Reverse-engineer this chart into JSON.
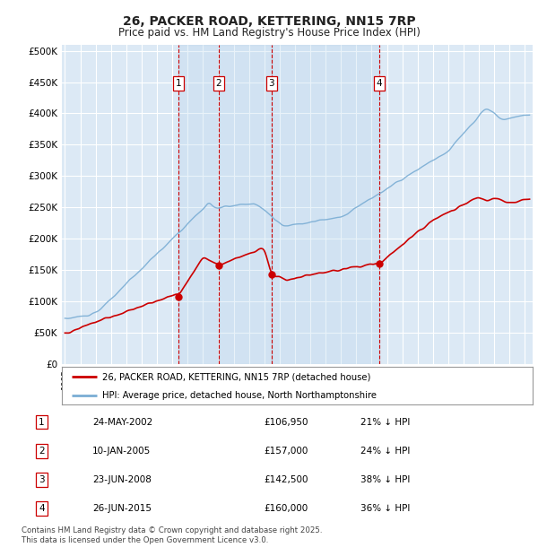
{
  "title": "26, PACKER ROAD, KETTERING, NN15 7RP",
  "subtitle": "Price paid vs. HM Land Registry's House Price Index (HPI)",
  "ylabel_values": [
    0,
    50000,
    100000,
    150000,
    200000,
    250000,
    300000,
    350000,
    400000,
    450000,
    500000
  ],
  "x_start_year": 1995,
  "x_end_year": 2025,
  "transactions": [
    {
      "label": "1",
      "date_str": "24-MAY-2002",
      "year": 2002.38,
      "price": 106950,
      "pct": "21% ↓ HPI"
    },
    {
      "label": "2",
      "date_str": "10-JAN-2005",
      "year": 2005.03,
      "price": 157000,
      "pct": "24% ↓ HPI"
    },
    {
      "label": "3",
      "date_str": "23-JUN-2008",
      "year": 2008.47,
      "price": 142500,
      "pct": "38% ↓ HPI"
    },
    {
      "label": "4",
      "date_str": "26-JUN-2015",
      "year": 2015.48,
      "price": 160000,
      "pct": "36% ↓ HPI"
    }
  ],
  "legend_line1": "26, PACKER ROAD, KETTERING, NN15 7RP (detached house)",
  "legend_line2": "HPI: Average price, detached house, North Northamptonshire",
  "footer": "Contains HM Land Registry data © Crown copyright and database right 2025.\nThis data is licensed under the Open Government Licence v3.0.",
  "plot_bg_color": "#dce9f5",
  "line_color_red": "#cc0000",
  "line_color_blue": "#7aadd4",
  "shade_color": "#c5daf0",
  "vline_color": "#cc0000",
  "grid_color": "#ffffff",
  "transaction_box_color": "#cc0000",
  "dot_color": "#cc0000"
}
